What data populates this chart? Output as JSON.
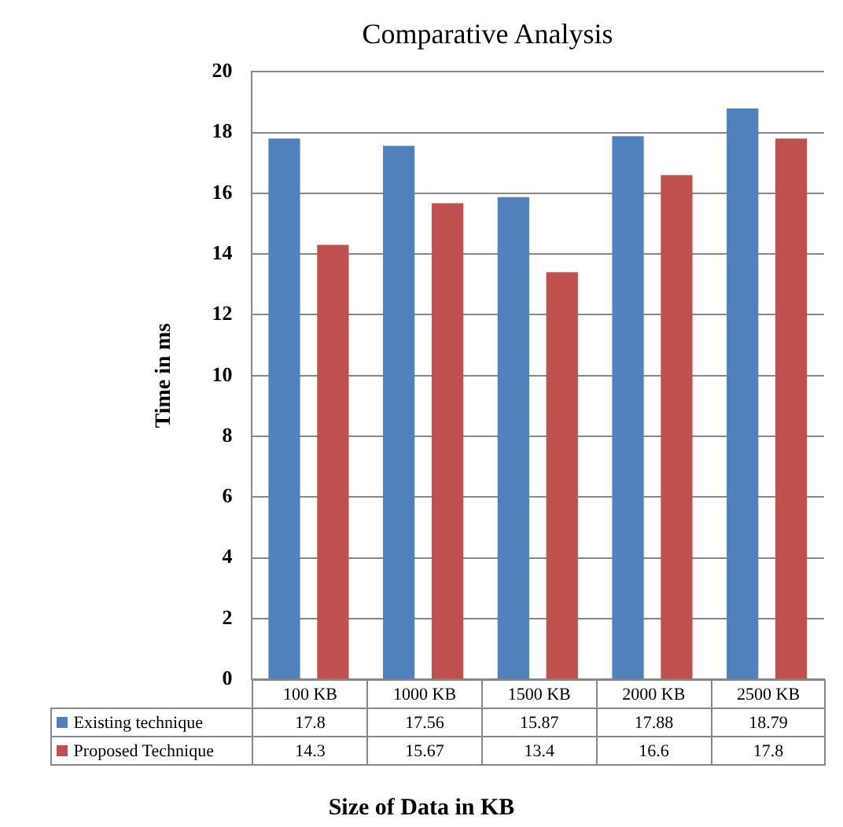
{
  "chart_data": {
    "type": "bar",
    "title": "Comparative Analysis",
    "xlabel": "Size of Data in KB",
    "ylabel": "Time in ms",
    "categories": [
      "100 KB",
      "1000 KB",
      "1500 KB",
      "2000 KB",
      "2500 KB"
    ],
    "series": [
      {
        "name": "Existing technique",
        "color": "#4f81bd",
        "values": [
          17.8,
          17.56,
          15.87,
          17.88,
          18.79
        ]
      },
      {
        "name": "Proposed Technique",
        "color": "#c0504d",
        "values": [
          14.3,
          15.67,
          13.4,
          16.6,
          17.8
        ]
      }
    ],
    "ylim": [
      0,
      20
    ],
    "yticks": [
      0,
      2,
      4,
      6,
      8,
      10,
      12,
      14,
      16,
      18,
      20
    ],
    "grid": "y",
    "legend": "bottom left",
    "data_labels": true
  }
}
